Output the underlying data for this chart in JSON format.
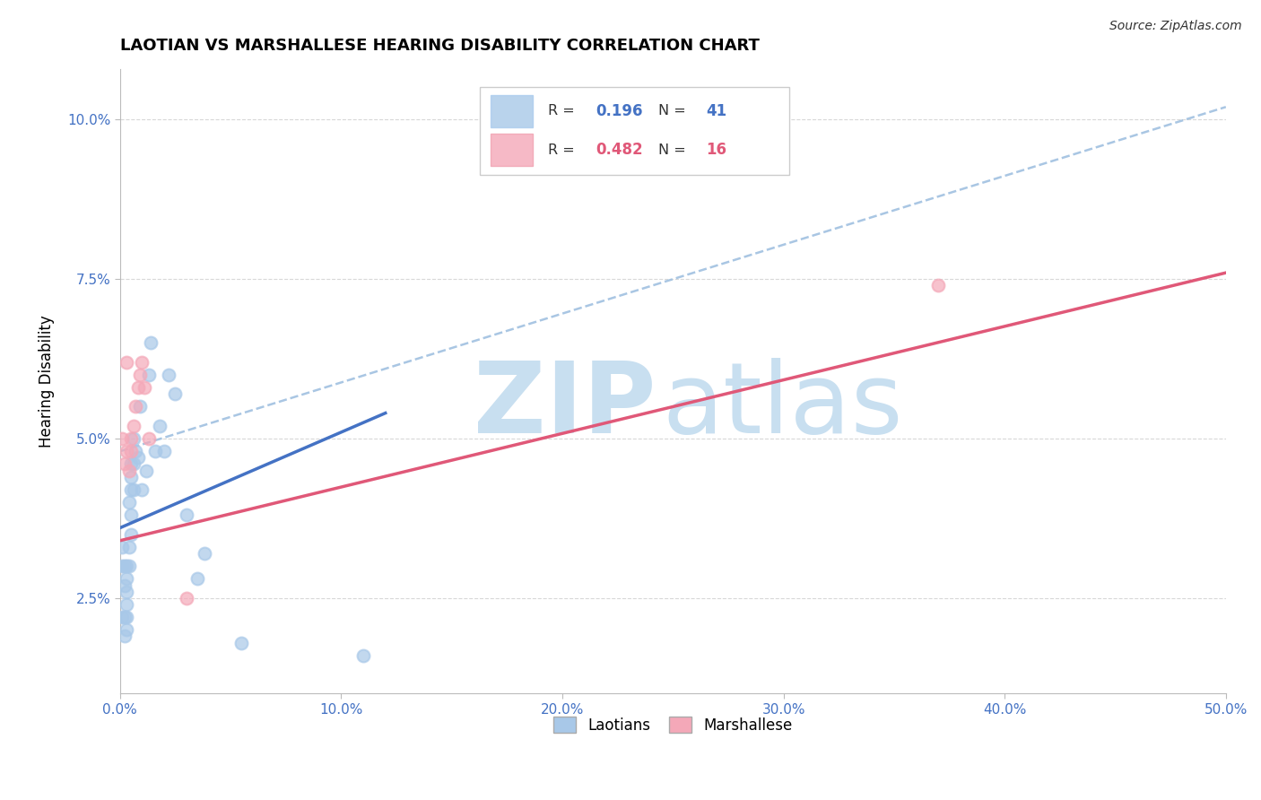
{
  "title": "LAOTIAN VS MARSHALLESE HEARING DISABILITY CORRELATION CHART",
  "source": "Source: ZipAtlas.com",
  "ylabel": "Hearing Disability",
  "xlim": [
    0.0,
    0.5
  ],
  "ylim": [
    0.01,
    0.108
  ],
  "ylabel_ticks": [
    0.025,
    0.05,
    0.075,
    0.1
  ],
  "ylabel_labels": [
    "2.5%",
    "5.0%",
    "7.5%",
    "10.0%"
  ],
  "xlabel_ticks": [
    0.0,
    0.1,
    0.2,
    0.3,
    0.4,
    0.5
  ],
  "xlabel_labels": [
    "0.0%",
    "10.0%",
    "20.0%",
    "30.0%",
    "40.0%",
    "50.0%"
  ],
  "laotian_color": "#a8c8e8",
  "marshallese_color": "#f4a8b8",
  "laotian_line_color": "#4472c4",
  "marshallese_line_color": "#e05878",
  "ref_line_color": "#a0c0e0",
  "watermark_zip_color": "#c8dff0",
  "watermark_atlas_color": "#c8dff0",
  "background_color": "#ffffff",
  "grid_color": "#d8d8d8",
  "tick_color": "#4472c4",
  "laotian_R": 0.196,
  "laotian_N": 41,
  "marshallese_R": 0.482,
  "marshallese_N": 16,
  "laotian_scatter": [
    [
      0.001,
      0.03
    ],
    [
      0.001,
      0.033
    ],
    [
      0.001,
      0.022
    ],
    [
      0.002,
      0.019
    ],
    [
      0.002,
      0.027
    ],
    [
      0.002,
      0.022
    ],
    [
      0.002,
      0.03
    ],
    [
      0.003,
      0.02
    ],
    [
      0.003,
      0.022
    ],
    [
      0.003,
      0.024
    ],
    [
      0.003,
      0.026
    ],
    [
      0.003,
      0.028
    ],
    [
      0.003,
      0.03
    ],
    [
      0.004,
      0.03
    ],
    [
      0.004,
      0.033
    ],
    [
      0.004,
      0.04
    ],
    [
      0.005,
      0.035
    ],
    [
      0.005,
      0.038
    ],
    [
      0.005,
      0.042
    ],
    [
      0.005,
      0.044
    ],
    [
      0.005,
      0.046
    ],
    [
      0.006,
      0.042
    ],
    [
      0.006,
      0.046
    ],
    [
      0.006,
      0.05
    ],
    [
      0.007,
      0.048
    ],
    [
      0.008,
      0.047
    ],
    [
      0.009,
      0.055
    ],
    [
      0.01,
      0.042
    ],
    [
      0.012,
      0.045
    ],
    [
      0.013,
      0.06
    ],
    [
      0.014,
      0.065
    ],
    [
      0.016,
      0.048
    ],
    [
      0.018,
      0.052
    ],
    [
      0.02,
      0.048
    ],
    [
      0.022,
      0.06
    ],
    [
      0.025,
      0.057
    ],
    [
      0.03,
      0.038
    ],
    [
      0.035,
      0.028
    ],
    [
      0.038,
      0.032
    ],
    [
      0.055,
      0.018
    ],
    [
      0.11,
      0.016
    ]
  ],
  "marshallese_scatter": [
    [
      0.001,
      0.05
    ],
    [
      0.002,
      0.046
    ],
    [
      0.003,
      0.048
    ],
    [
      0.003,
      0.062
    ],
    [
      0.004,
      0.045
    ],
    [
      0.005,
      0.048
    ],
    [
      0.005,
      0.05
    ],
    [
      0.006,
      0.052
    ],
    [
      0.007,
      0.055
    ],
    [
      0.008,
      0.058
    ],
    [
      0.009,
      0.06
    ],
    [
      0.01,
      0.062
    ],
    [
      0.011,
      0.058
    ],
    [
      0.013,
      0.05
    ],
    [
      0.03,
      0.025
    ],
    [
      0.37,
      0.074
    ]
  ],
  "lao_line_x": [
    0.0,
    0.12
  ],
  "lao_line_y": [
    0.036,
    0.054
  ],
  "marsh_line_x": [
    0.0,
    0.5
  ],
  "marsh_line_y": [
    0.034,
    0.076
  ],
  "ref_line_x": [
    0.0,
    0.5
  ],
  "ref_line_y": [
    0.048,
    0.102
  ]
}
